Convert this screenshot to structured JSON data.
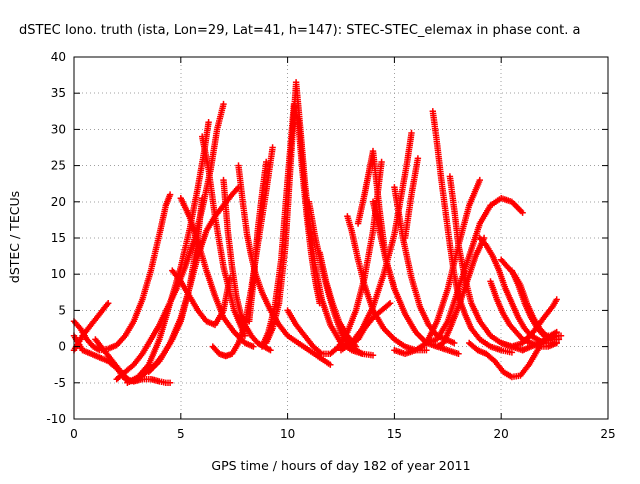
{
  "chart_data": {
    "type": "scatter",
    "title": "dSTEC Iono. truth (ista, Lon=29, Lat=41, h=147): STEC-STEC_elemax in phase cont. a",
    "xlabel": "GPS time / hours of day 182 of year 2011",
    "ylabel": "dSTEC  / TECUs",
    "xlim": [
      0,
      25
    ],
    "ylim": [
      -10,
      40
    ],
    "x_ticks": [
      "0",
      "5",
      "10",
      "15",
      "20",
      "25"
    ],
    "y_ticks": [
      "-10",
      "-5",
      "0",
      "5",
      "10",
      "15",
      "20",
      "25",
      "30",
      "35",
      "40"
    ],
    "grid": true,
    "marker": "plus",
    "series_color": "#ff0000",
    "series": [
      {
        "x": [
          0.0,
          0.4,
          0.8,
          1.2,
          1.6
        ],
        "y": [
          -0.5,
          1.5,
          3.0,
          4.5,
          6.0
        ]
      },
      {
        "x": [
          0.0,
          0.3,
          0.6,
          0.9,
          1.2,
          1.6,
          2.0,
          2.4,
          2.8,
          3.2,
          3.6,
          4.0,
          4.3,
          4.5
        ],
        "y": [
          3.5,
          2.5,
          1.0,
          0.0,
          -0.5,
          -0.3,
          0.2,
          1.5,
          3.5,
          6.5,
          10.5,
          15.5,
          19.5,
          21.0
        ]
      },
      {
        "x": [
          0.0,
          0.4,
          0.8,
          1.2,
          1.6,
          2.0,
          2.4,
          2.8,
          3.2,
          3.6,
          4.0,
          4.3,
          4.5
        ],
        "y": [
          1.5,
          -0.5,
          -1.0,
          -1.5,
          -2.0,
          -3.0,
          -4.5,
          -4.8,
          -4.5,
          -4.5,
          -4.8,
          -5.0,
          -5.0
        ]
      },
      {
        "x": [
          1.0,
          1.4,
          1.8,
          2.2,
          2.6,
          3.0,
          3.4,
          3.8,
          4.2,
          4.6,
          5.0,
          5.4,
          5.8,
          6.0
        ],
        "y": [
          1.0,
          -0.5,
          -2.0,
          -3.5,
          -4.8,
          -4.5,
          -3.5,
          -2.5,
          -1.0,
          1.0,
          3.5,
          8.0,
          15.0,
          20.5
        ]
      },
      {
        "x": [
          2.0,
          2.4,
          2.8,
          3.2,
          3.6,
          4.0,
          4.4,
          4.8,
          5.2,
          5.6,
          6.0,
          6.4,
          6.7,
          7.0
        ],
        "y": [
          -4.5,
          -3.5,
          -2.5,
          -1.0,
          1.0,
          3.0,
          5.5,
          8.0,
          11.0,
          14.5,
          19.0,
          24.5,
          30.0,
          33.5
        ]
      },
      {
        "x": [
          2.5,
          3.0,
          3.5,
          4.0,
          4.5,
          5.0,
          5.4,
          5.8,
          6.1,
          6.3
        ],
        "y": [
          -5.0,
          -4.2,
          -2.5,
          1.0,
          6.0,
          11.0,
          16.0,
          22.0,
          27.0,
          31.0
        ]
      },
      {
        "x": [
          3.5,
          4.0,
          4.5,
          5.0,
          5.4,
          5.8,
          6.2,
          6.6,
          7.0,
          7.4,
          7.7
        ],
        "y": [
          -3.5,
          -2.0,
          0.5,
          4.0,
          8.0,
          12.5,
          16.0,
          18.0,
          19.5,
          21.0,
          22.0
        ]
      },
      {
        "x": [
          4.6,
          5.0,
          5.4,
          5.8,
          6.2,
          6.6,
          7.0,
          7.3
        ],
        "y": [
          10.5,
          9.0,
          7.0,
          5.0,
          3.5,
          3.0,
          5.0,
          9.5
        ]
      },
      {
        "x": [
          5.0,
          5.4,
          5.8,
          6.2,
          6.6,
          7.0,
          7.5,
          8.0,
          8.4
        ],
        "y": [
          20.5,
          18.0,
          14.5,
          10.5,
          7.0,
          4.0,
          2.0,
          0.5,
          0.0
        ]
      },
      {
        "x": [
          6.0,
          6.3,
          6.6,
          7.0,
          7.5,
          8.0
        ],
        "y": [
          29.0,
          24.5,
          18.0,
          11.0,
          5.0,
          1.5
        ]
      },
      {
        "x": [
          6.5,
          6.8,
          7.1,
          7.4,
          7.7,
          8.0,
          8.3,
          8.6,
          9.0,
          9.3
        ],
        "y": [
          0.0,
          -1.0,
          -1.3,
          -1.0,
          0.5,
          3.0,
          8.0,
          14.0,
          21.5,
          27.5
        ]
      },
      {
        "x": [
          7.0,
          7.2,
          7.4,
          7.6,
          7.8,
          8.0,
          8.3,
          8.6,
          8.9,
          9.2
        ],
        "y": [
          23.0,
          16.0,
          11.0,
          7.0,
          4.5,
          3.0,
          1.5,
          0.5,
          0.0,
          -0.5
        ]
      },
      {
        "x": [
          7.7,
          7.9,
          8.1,
          8.3,
          8.5,
          8.8,
          9.2,
          9.6,
          10.0,
          10.5,
          11.0,
          11.5,
          12.0
        ],
        "y": [
          25.0,
          20.0,
          15.5,
          12.5,
          10.0,
          7.5,
          5.0,
          3.0,
          1.5,
          0.5,
          -0.5,
          -1.5,
          -2.5
        ]
      },
      {
        "x": [
          8.2,
          8.4,
          8.6,
          8.8,
          9.0
        ],
        "y": [
          3.5,
          9.0,
          16.0,
          21.0,
          25.5
        ]
      },
      {
        "x": [
          8.8,
          9.1,
          9.4,
          9.7,
          10.0,
          10.3,
          10.5,
          10.7,
          10.9,
          11.1,
          11.3,
          11.5
        ],
        "y": [
          0.0,
          2.0,
          5.5,
          12.0,
          23.0,
          33.5,
          31.0,
          24.0,
          18.0,
          13.0,
          9.0,
          6.0
        ]
      },
      {
        "x": [
          9.0,
          9.3,
          9.6,
          9.9,
          10.2,
          10.4,
          10.6,
          10.8,
          11.0,
          11.3,
          11.6,
          12.0,
          12.5,
          13.0,
          13.5,
          14.0
        ],
        "y": [
          0.5,
          2.5,
          6.0,
          14.0,
          28.0,
          36.5,
          30.0,
          23.0,
          17.0,
          11.0,
          6.5,
          3.0,
          0.5,
          -0.5,
          -1.0,
          -1.2
        ]
      },
      {
        "x": [
          10.0,
          10.4,
          10.8,
          11.2,
          11.6,
          12.0,
          12.4,
          12.8,
          13.2,
          13.6,
          14.0,
          14.4
        ],
        "y": [
          5.0,
          3.0,
          1.5,
          0.0,
          -1.0,
          -1.0,
          0.0,
          2.0,
          5.0,
          9.5,
          16.0,
          25.5
        ]
      },
      {
        "x": [
          11.0,
          11.3,
          11.6,
          11.9,
          12.2,
          12.5,
          12.8,
          13.2,
          13.5
        ],
        "y": [
          20.0,
          15.0,
          11.0,
          7.5,
          4.5,
          2.0,
          0.5,
          -0.5,
          -1.0
        ]
      },
      {
        "x": [
          11.5,
          11.8,
          12.1,
          12.4,
          12.8,
          13.2
        ],
        "y": [
          13.0,
          9.0,
          6.0,
          3.5,
          1.5,
          0.0
        ]
      },
      {
        "x": [
          12.5,
          13.0,
          13.5,
          14.0,
          14.5,
          15.0,
          15.3,
          15.6,
          15.8
        ],
        "y": [
          -0.5,
          0.5,
          2.5,
          5.5,
          10.0,
          15.5,
          20.5,
          25.5,
          29.5
        ]
      },
      {
        "x": [
          12.8,
          13.0,
          13.3,
          13.6,
          14.0,
          14.5,
          15.0,
          15.5,
          16.0,
          16.5
        ],
        "y": [
          18.0,
          16.0,
          12.0,
          8.5,
          5.0,
          2.5,
          1.0,
          0.0,
          -0.5,
          -0.5
        ]
      },
      {
        "x": [
          13.0,
          13.3,
          13.6,
          14.0,
          14.4,
          14.8
        ],
        "y": [
          0.5,
          1.0,
          2.5,
          4.0,
          5.0,
          6.0
        ]
      },
      {
        "x": [
          13.3,
          13.6,
          13.8,
          14.0,
          14.3,
          14.6,
          15.0
        ],
        "y": [
          17.0,
          21.0,
          24.0,
          27.0,
          19.0,
          12.0,
          8.0
        ]
      },
      {
        "x": [
          14.0,
          14.3,
          14.6,
          15.0,
          15.5,
          16.0,
          16.5,
          17.0,
          17.5,
          18.0
        ],
        "y": [
          20.0,
          16.0,
          12.0,
          8.0,
          4.5,
          2.0,
          0.5,
          0.0,
          -0.5,
          -1.0
        ]
      },
      {
        "x": [
          15.0,
          15.4,
          15.8,
          16.2,
          16.6,
          17.0,
          17.4,
          17.8
        ],
        "y": [
          22.0,
          15.0,
          9.5,
          5.5,
          3.0,
          1.5,
          1.0,
          0.5
        ]
      },
      {
        "x": [
          15.0,
          15.5,
          16.0,
          16.5,
          17.0,
          17.5,
          18.0,
          18.5,
          19.0
        ],
        "y": [
          -0.5,
          -1.0,
          -0.5,
          0.5,
          3.5,
          8.0,
          14.0,
          19.5,
          23.0
        ]
      },
      {
        "x": [
          15.5,
          15.8,
          16.1
        ],
        "y": [
          15.0,
          21.0,
          26.0
        ]
      },
      {
        "x": [
          16.8,
          17.0,
          17.2,
          17.4,
          17.6,
          17.8,
          18.0,
          18.3,
          18.6,
          19.0,
          19.5,
          20.0,
          20.5
        ],
        "y": [
          32.5,
          28.0,
          23.0,
          18.5,
          14.0,
          10.0,
          7.0,
          4.5,
          2.5,
          1.0,
          0.0,
          -0.5,
          -0.8
        ]
      },
      {
        "x": [
          16.5,
          17.0,
          17.5,
          18.0,
          18.5,
          19.0,
          19.5,
          20.0,
          20.5,
          21.0
        ],
        "y": [
          0.5,
          1.0,
          3.5,
          8.0,
          12.5,
          17.0,
          19.5,
          20.5,
          20.0,
          18.5
        ]
      },
      {
        "x": [
          17.6,
          17.8,
          18.0,
          18.3,
          18.6,
          19.0,
          19.5,
          20.0,
          20.5,
          21.0
        ],
        "y": [
          23.5,
          19.0,
          14.0,
          9.5,
          6.0,
          3.5,
          1.5,
          0.5,
          0.0,
          -0.5
        ]
      },
      {
        "x": [
          17.0,
          17.3,
          17.6,
          18.0,
          18.4,
          18.8,
          19.2
        ],
        "y": [
          0.0,
          0.5,
          2.5,
          5.5,
          9.0,
          12.5,
          15.0
        ]
      },
      {
        "x": [
          18.5,
          18.9,
          19.3,
          19.7,
          20.1,
          20.5,
          20.9,
          21.3,
          21.7,
          22.0
        ],
        "y": [
          0.5,
          -0.5,
          -1.0,
          -2.0,
          -3.5,
          -4.2,
          -4.0,
          -2.5,
          -0.5,
          1.0
        ]
      },
      {
        "x": [
          19.0,
          19.3,
          19.6,
          19.9,
          20.2,
          20.5,
          20.8,
          21.1,
          21.4,
          21.7,
          22.0,
          22.3,
          22.6
        ],
        "y": [
          15.0,
          14.0,
          12.5,
          10.5,
          8.0,
          6.0,
          4.0,
          2.5,
          1.5,
          1.0,
          0.5,
          0.5,
          0.5
        ]
      },
      {
        "x": [
          19.5,
          19.8,
          20.1,
          20.4,
          20.7,
          21.0,
          21.4,
          21.8,
          22.2,
          22.6
        ],
        "y": [
          9.0,
          6.5,
          4.5,
          3.0,
          2.0,
          1.0,
          0.5,
          0.0,
          0.0,
          0.5
        ]
      },
      {
        "x": [
          20.0,
          20.3,
          20.6,
          20.9,
          21.2,
          21.5,
          21.8,
          22.1,
          22.4,
          22.7
        ],
        "y": [
          12.0,
          11.0,
          10.0,
          8.5,
          6.0,
          4.0,
          2.5,
          1.5,
          1.0,
          1.0
        ]
      },
      {
        "x": [
          20.5,
          20.8,
          21.1,
          21.4,
          21.7,
          22.0,
          22.3,
          22.6
        ],
        "y": [
          10.5,
          8.5,
          6.0,
          4.0,
          2.5,
          1.5,
          1.5,
          2.0
        ]
      },
      {
        "x": [
          20.0,
          20.5,
          21.0,
          21.5,
          22.0,
          22.4,
          22.6
        ],
        "y": [
          0.5,
          0.0,
          0.5,
          2.0,
          4.0,
          5.5,
          6.5
        ]
      },
      {
        "x": [
          21.0,
          21.4,
          21.8,
          22.2,
          22.6,
          22.8
        ],
        "y": [
          -0.5,
          0.0,
          0.5,
          1.0,
          1.5,
          1.5
        ]
      }
    ]
  }
}
